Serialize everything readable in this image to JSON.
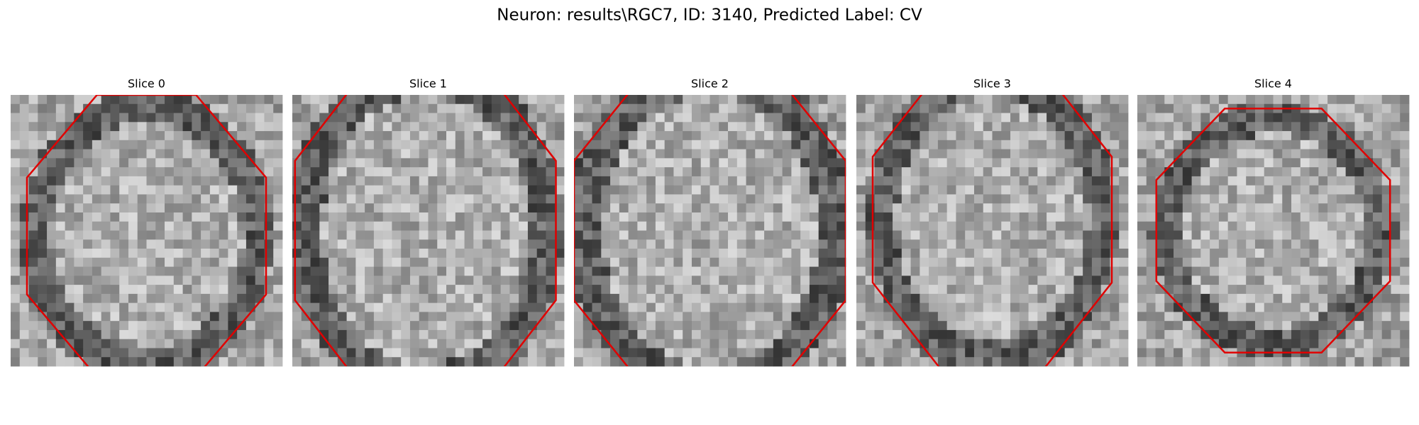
{
  "title": "Neuron: results\\RGC7, ID: 3140, Predicted Label: CV",
  "panels": [
    {
      "title": "Slice 0"
    },
    {
      "title": "Slice 1"
    },
    {
      "title": "Slice 2"
    },
    {
      "title": "Slice 3"
    },
    {
      "title": "Slice 4"
    }
  ]
}
